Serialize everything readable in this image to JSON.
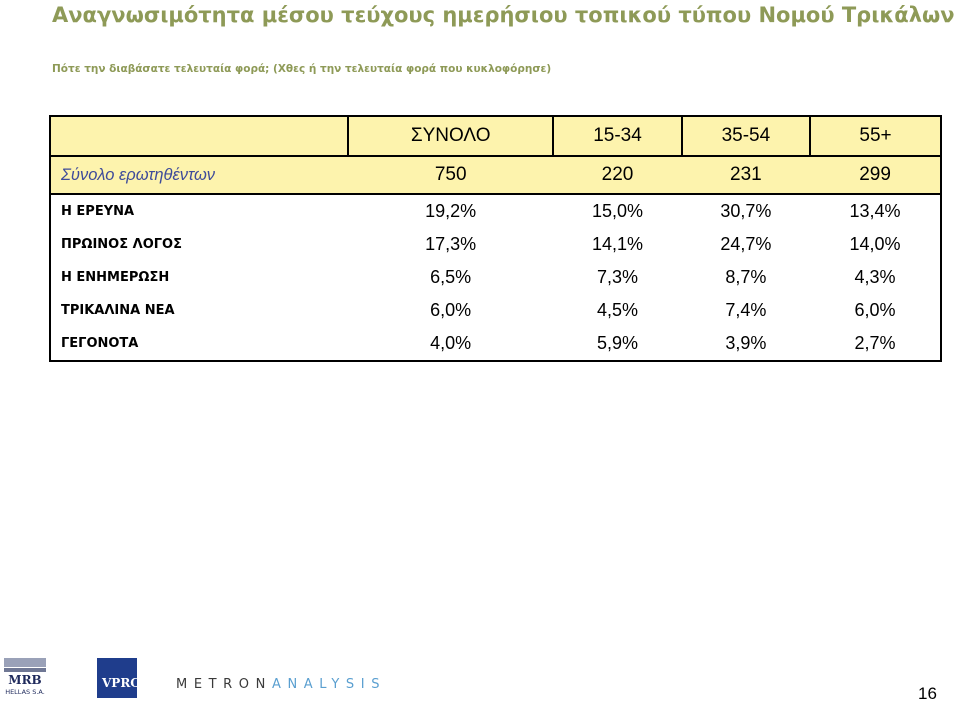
{
  "header": {
    "title": "Αναγνωσιμότητα μέσου τεύχους ημερήσιου τοπικού τύπου Νομού Τρικάλων – Ηλικία",
    "subtitle": "Πότε την διαβάσατε τελευταία φορά; (Χθες ή την τελευταία φορά που κυκλοφόρησε)"
  },
  "table": {
    "columns": [
      "ΣΥΝΟΛΟ",
      "15-34",
      "35-54",
      "55+"
    ],
    "total_row": {
      "label": "Σύνολο ερωτηθέντων",
      "values": [
        "750",
        "220",
        "231",
        "299"
      ]
    },
    "rows": [
      {
        "label": "Η ΕΡΕΥΝΑ",
        "values": [
          "19,2%",
          "15,0%",
          "30,7%",
          "13,4%"
        ]
      },
      {
        "label": "ΠΡΩΙΝΟΣ ΛΟΓΟΣ",
        "values": [
          "17,3%",
          "14,1%",
          "24,7%",
          "14,0%"
        ]
      },
      {
        "label": "Η ΕΝΗΜΕΡΩΣΗ",
        "values": [
          "6,5%",
          "7,3%",
          "8,7%",
          "4,3%"
        ]
      },
      {
        "label": "ΤΡΙΚΑΛΙΝΑ ΝΕΑ",
        "values": [
          "6,0%",
          "4,5%",
          "7,4%",
          "6,0%"
        ]
      },
      {
        "label": "ΓΕΓΟΝΟΤΑ",
        "values": [
          "4,0%",
          "5,9%",
          "3,9%",
          "2,7%"
        ]
      }
    ]
  },
  "footer": {
    "logo_mrb_top": "MRB",
    "logo_mrb_bottom": "HELLAS S.A.",
    "logo_vprc": "VPRC",
    "logo_metron_a": "METRON",
    "logo_metron_b": "ANALYSIS",
    "page_number": "16"
  },
  "colors": {
    "title": "#8e9a57",
    "header_fill": "#fdf3ad",
    "total_label": "#3e4b9a",
    "vprc": "#1f3d8c"
  }
}
